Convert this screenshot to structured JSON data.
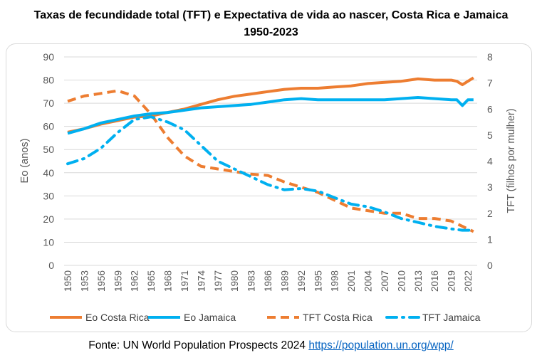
{
  "chart_data": {
    "type": "line",
    "title": "Taxas de fecundidade total (TFT) e Expectativa de vida ao nascer, Costa Rica e Jamaica",
    "subtitle": "1950-2023",
    "ylabel": "Eo (anos)",
    "y2label": "TFT (filhos por mulher)",
    "ylim": [
      0,
      90
    ],
    "y2lim": [
      0,
      8
    ],
    "yticks": [
      0,
      10,
      20,
      30,
      40,
      50,
      60,
      70,
      80,
      90
    ],
    "y2ticks": [
      0,
      1,
      2,
      3,
      4,
      5,
      6,
      7,
      8
    ],
    "xticks": [
      1950,
      1953,
      1956,
      1959,
      1962,
      1965,
      1968,
      1971,
      1974,
      1977,
      1980,
      1983,
      1986,
      1989,
      1992,
      1995,
      1998,
      2001,
      2004,
      2007,
      2010,
      2013,
      2016,
      2019,
      2022
    ],
    "grid": true,
    "legend": "bottom",
    "series": [
      {
        "name": "Eo Costa Rica",
        "axis": "left",
        "color": "#ed7d31",
        "style": "solid",
        "x": [
          1950,
          1953,
          1956,
          1959,
          1962,
          1965,
          1968,
          1971,
          1974,
          1977,
          1980,
          1983,
          1986,
          1989,
          1992,
          1995,
          1998,
          2001,
          2004,
          2007,
          2010,
          2013,
          2016,
          2019,
          2020,
          2021,
          2022,
          2023
        ],
        "y": [
          57.5,
          59,
          61,
          62.5,
          64,
          64.5,
          66,
          67.5,
          69.5,
          71.5,
          73,
          74,
          75,
          76,
          76.5,
          76.5,
          77,
          77.5,
          78.5,
          79,
          79.5,
          80.5,
          80,
          80,
          79.5,
          78,
          79.5,
          81
        ]
      },
      {
        "name": "Eo Jamaica",
        "axis": "left",
        "color": "#00b0f0",
        "style": "solid",
        "x": [
          1950,
          1953,
          1956,
          1959,
          1962,
          1965,
          1968,
          1971,
          1974,
          1977,
          1980,
          1983,
          1986,
          1989,
          1992,
          1995,
          1998,
          2001,
          2004,
          2007,
          2010,
          2013,
          2016,
          2019,
          2020,
          2021,
          2022,
          2023
        ],
        "y": [
          57,
          59,
          61.5,
          63,
          64.5,
          65.5,
          66,
          67,
          68,
          68.5,
          69,
          69.5,
          70.5,
          71.5,
          72,
          71.5,
          71.5,
          71.5,
          71.5,
          71.5,
          72,
          72.5,
          72,
          71.5,
          71.5,
          69,
          71.5,
          71.5
        ]
      },
      {
        "name": "TFT Costa Rica",
        "axis": "right",
        "color": "#ed7d31",
        "style": "dash",
        "x": [
          1950,
          1953,
          1956,
          1959,
          1962,
          1965,
          1968,
          1971,
          1974,
          1977,
          1980,
          1983,
          1986,
          1989,
          1992,
          1995,
          1998,
          2001,
          2004,
          2007,
          2010,
          2013,
          2016,
          2019,
          2021,
          2023
        ],
        "y": [
          6.3,
          6.5,
          6.6,
          6.7,
          6.5,
          5.8,
          4.9,
          4.2,
          3.8,
          3.7,
          3.6,
          3.5,
          3.45,
          3.2,
          3.0,
          2.8,
          2.5,
          2.2,
          2.1,
          2.0,
          2.0,
          1.8,
          1.8,
          1.7,
          1.5,
          1.3
        ]
      },
      {
        "name": "TFT Jamaica",
        "axis": "right",
        "color": "#00b0f0",
        "style": "dashdot",
        "x": [
          1950,
          1953,
          1956,
          1959,
          1962,
          1965,
          1968,
          1971,
          1974,
          1977,
          1980,
          1983,
          1986,
          1989,
          1992,
          1995,
          1998,
          2001,
          2004,
          2007,
          2010,
          2013,
          2016,
          2019,
          2021,
          2023
        ],
        "y": [
          3.9,
          4.1,
          4.5,
          5.1,
          5.6,
          5.7,
          5.5,
          5.2,
          4.6,
          4.0,
          3.7,
          3.4,
          3.1,
          2.9,
          2.95,
          2.85,
          2.6,
          2.35,
          2.25,
          2.05,
          1.8,
          1.65,
          1.5,
          1.4,
          1.35,
          1.35
        ]
      }
    ]
  },
  "footer": {
    "text": "Fonte: UN World Population Prospects 2024 ",
    "link": "https://population.un.org/wpp/"
  }
}
